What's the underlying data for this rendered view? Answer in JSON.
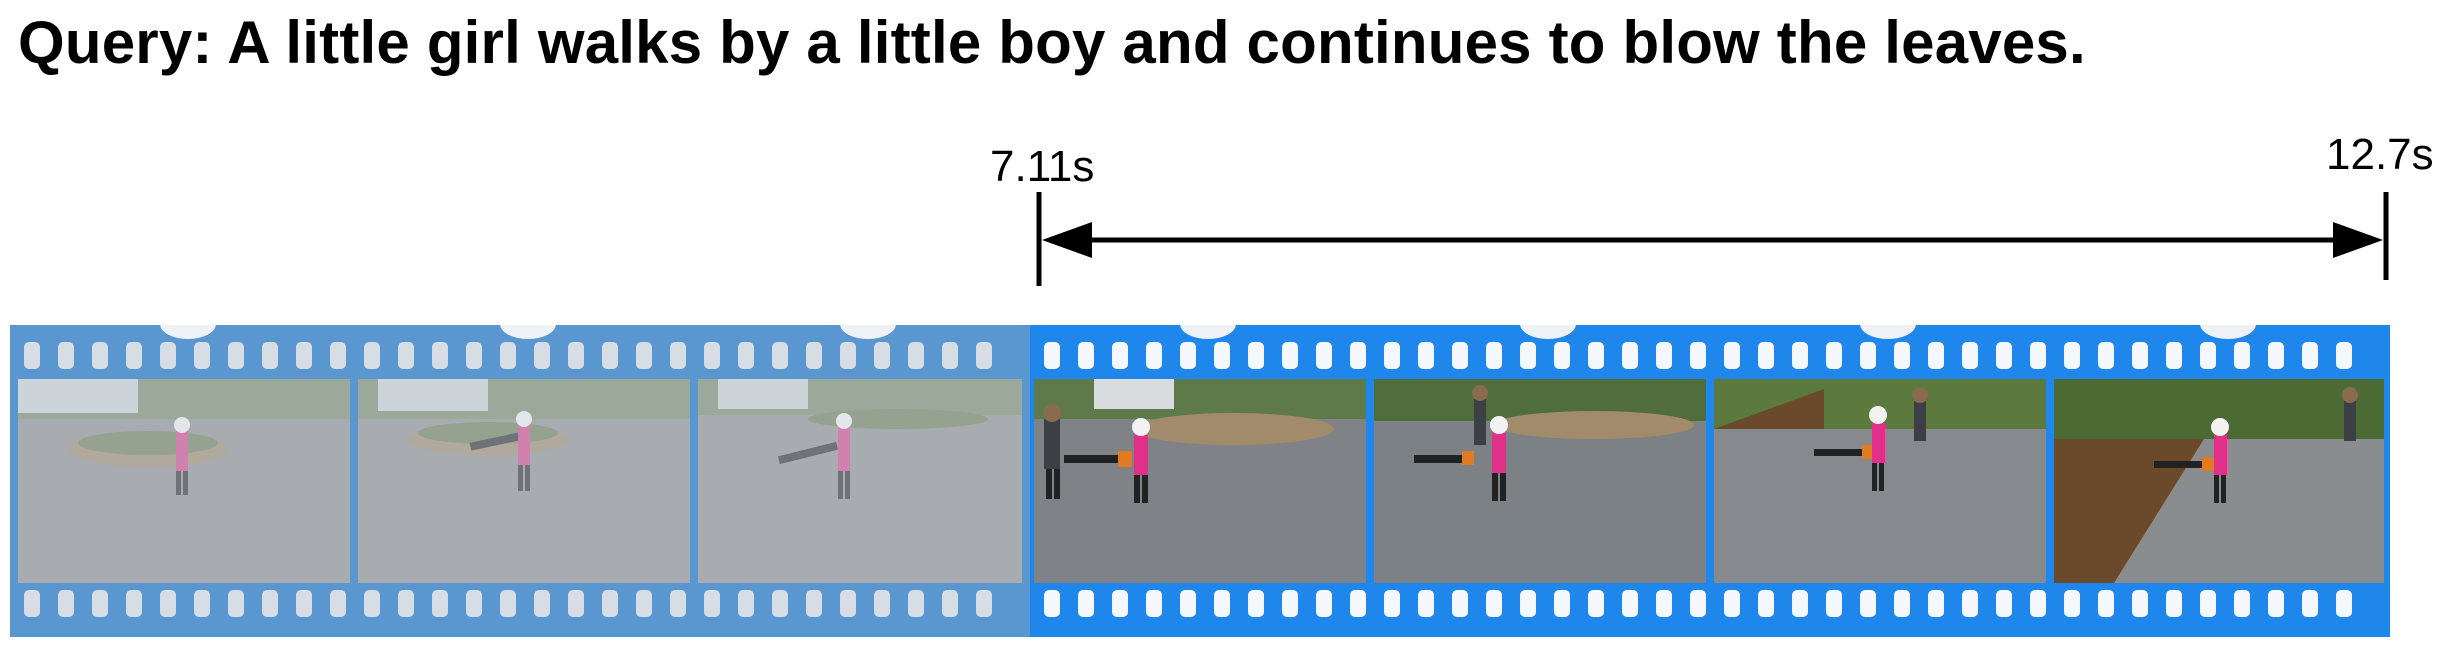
{
  "query": {
    "text": "Query: A little girl walks by a little boy and continues to blow the leaves."
  },
  "segment": {
    "start_label": "7.11s",
    "end_label": "12.7s"
  },
  "filmstrip": {
    "frame_count": 7,
    "highlighted_frames": [
      4,
      5,
      6,
      7
    ],
    "frames": [
      {
        "index": 1,
        "highlighted": false,
        "description": "girl with leaf blower in driveway"
      },
      {
        "index": 2,
        "highlighted": false,
        "description": "girl with leaf blower in driveway"
      },
      {
        "index": 3,
        "highlighted": false,
        "description": "girl with leaf blower in driveway"
      },
      {
        "index": 4,
        "highlighted": true,
        "description": "girl walks by boy"
      },
      {
        "index": 5,
        "highlighted": true,
        "description": "girl walks by boy"
      },
      {
        "index": 6,
        "highlighted": true,
        "description": "girl blows leaves"
      },
      {
        "index": 7,
        "highlighted": true,
        "description": "girl blows leaves"
      }
    ]
  },
  "colors": {
    "highlight": "#1f86ec",
    "dimmed": "#5a96d0",
    "arrow": "#000000"
  }
}
